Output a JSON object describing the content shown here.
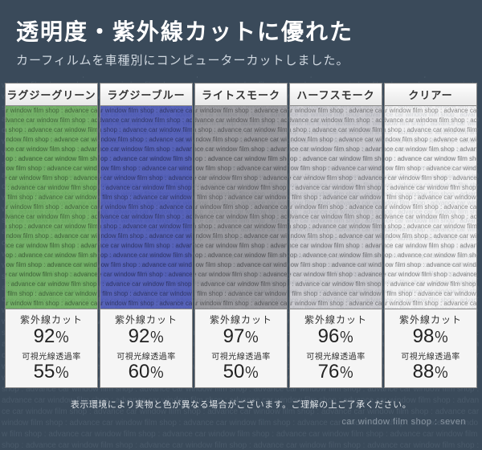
{
  "header": {
    "title": "透明度・紫外線カットに優れた",
    "subtitle": "カーフィルムを車種別にコンピューターカットしました。"
  },
  "bg_text_phrase": "advance car window film shop : ",
  "uv_label": "紫外線カット",
  "vlt_label": "可視光線透過率",
  "percent_sign": "％",
  "cards": [
    {
      "name": "ラグジーグリーン",
      "color": "#4a9a3a",
      "opacity": 0.75,
      "uv": "92",
      "vlt": "55"
    },
    {
      "name": "ラグジーブルー",
      "color": "#2a3aa8",
      "opacity": 0.78,
      "uv": "92",
      "vlt": "60"
    },
    {
      "name": "ライトスモーク",
      "color": "#707078",
      "opacity": 0.68,
      "uv": "97",
      "vlt": "50"
    },
    {
      "name": "ハーフスモーク",
      "color": "#a8a8b0",
      "opacity": 0.55,
      "uv": "96",
      "vlt": "76"
    },
    {
      "name": "クリアー",
      "color": "#e8e8ec",
      "opacity": 0.35,
      "uv": "98",
      "vlt": "88"
    }
  ],
  "disclaimer": "表示環境により実物と色が異なる場合がございます。ご理解の上ご了承ください。",
  "footer": "car window film shop : seven",
  "colors": {
    "page_bg": "#3a4a5a",
    "title_color": "#ffffff",
    "subtitle_color": "#d0d8e0",
    "card_bg": "#f5f5f5",
    "card_border": "#888888",
    "stat_text": "#333333"
  }
}
